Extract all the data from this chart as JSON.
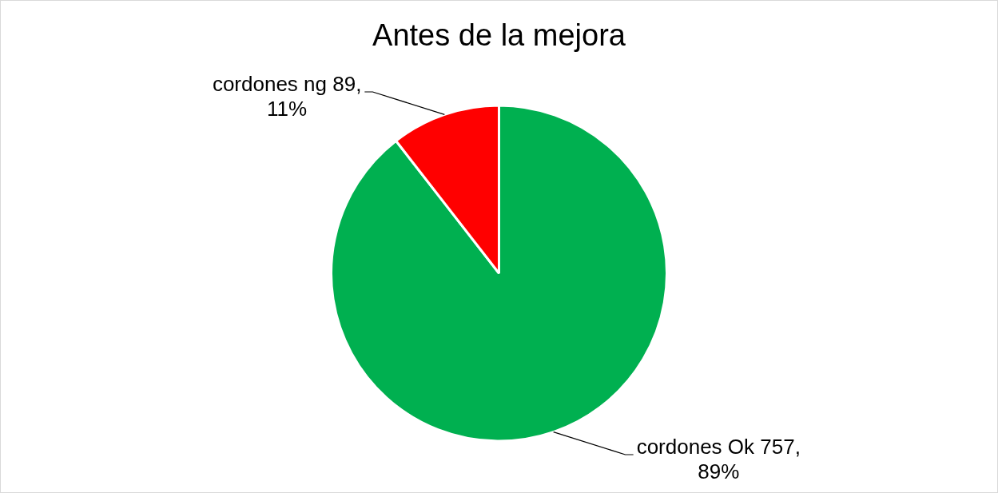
{
  "chart_data": {
    "type": "pie",
    "title": "Antes de la mejora",
    "categories": [
      "cordones Ok",
      "cordones ng"
    ],
    "values": [
      757,
      89
    ],
    "colors": [
      "#00b050",
      "#ff0000"
    ],
    "value_labels": [
      "757, 89%",
      "89, 11%"
    ]
  }
}
